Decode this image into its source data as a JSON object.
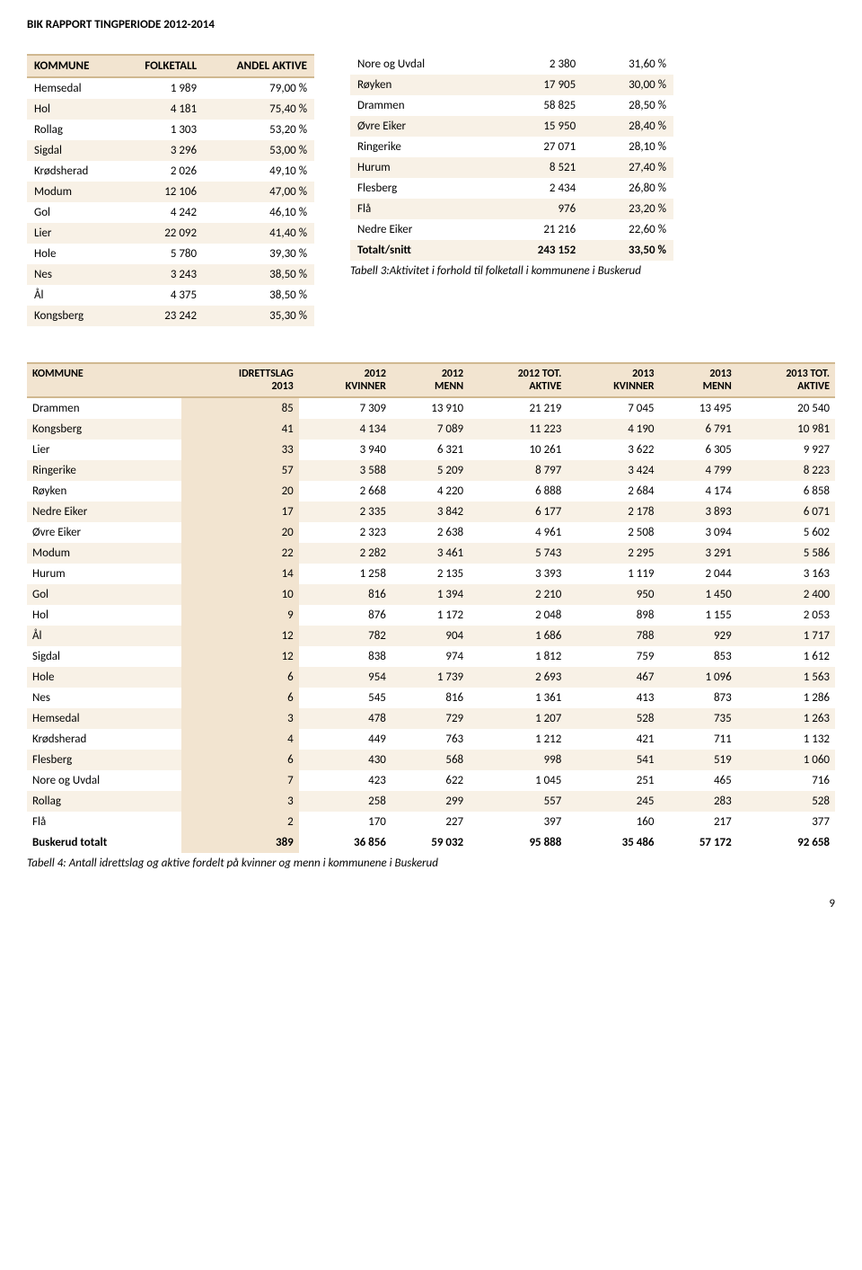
{
  "doc_title": "BIK RAPPORT TINGPERIODE 2012-2014",
  "page_number": "9",
  "table1": {
    "headers": [
      "KOMMUNE",
      "FOLKETALL",
      "ANDEL AKTIVE"
    ],
    "rows": [
      [
        "Hemsedal",
        "1 989",
        "79,00 %"
      ],
      [
        "Hol",
        "4 181",
        "75,40 %"
      ],
      [
        "Rollag",
        "1 303",
        "53,20 %"
      ],
      [
        "Sigdal",
        "3 296",
        "53,00 %"
      ],
      [
        "Krødsherad",
        "2 026",
        "49,10 %"
      ],
      [
        "Modum",
        "12 106",
        "47,00 %"
      ],
      [
        "Gol",
        "4 242",
        "46,10 %"
      ],
      [
        "Lier",
        "22 092",
        "41,40 %"
      ],
      [
        "Hole",
        "5 780",
        "39,30 %"
      ],
      [
        "Nes",
        "3 243",
        "38,50 %"
      ],
      [
        "Ål",
        "4 375",
        "38,50 %"
      ],
      [
        "Kongsberg",
        "23 242",
        "35,30 %"
      ]
    ]
  },
  "table2": {
    "rows": [
      [
        "Nore og Uvdal",
        "2 380",
        "31,60 %"
      ],
      [
        "Røyken",
        "17 905",
        "30,00 %"
      ],
      [
        "Drammen",
        "58 825",
        "28,50 %"
      ],
      [
        "Øvre Eiker",
        "15 950",
        "28,40 %"
      ],
      [
        "Ringerike",
        "27 071",
        "28,10 %"
      ],
      [
        "Hurum",
        "8 521",
        "27,40 %"
      ],
      [
        "Flesberg",
        "2 434",
        "26,80 %"
      ],
      [
        "Flå",
        "976",
        "23,20 %"
      ],
      [
        "Nedre Eiker",
        "21 216",
        "22,60 %"
      ]
    ],
    "total": [
      "Totalt/snitt",
      "243 152",
      "33,50 %"
    ],
    "caption": "Tabell 3:Aktivitet i forhold til folketall i kommunene i Buskerud"
  },
  "table3": {
    "headers": [
      "KOMMUNE",
      "IDRETTSLAG 2013",
      "2012 KVINNER",
      "2012 MENN",
      "2012 TOT. AKTIVE",
      "2013 KVINNER",
      "2013 MENN",
      "2013 TOT. AKTIVE"
    ],
    "header_lines": [
      [
        "KOMMUNE"
      ],
      [
        "IDRETTSLAG",
        "2013"
      ],
      [
        "2012",
        "KVINNER"
      ],
      [
        "2012",
        "MENN"
      ],
      [
        "2012 TOT.",
        "AKTIVE"
      ],
      [
        "2013",
        "KVINNER"
      ],
      [
        "2013",
        "MENN"
      ],
      [
        "2013 TOT.",
        "AKTIVE"
      ]
    ],
    "rows": [
      [
        "Drammen",
        "85",
        "7 309",
        "13 910",
        "21 219",
        "7 045",
        "13 495",
        "20 540"
      ],
      [
        "Kongsberg",
        "41",
        "4 134",
        "7 089",
        "11 223",
        "4 190",
        "6 791",
        "10 981"
      ],
      [
        "Lier",
        "33",
        "3 940",
        "6 321",
        "10 261",
        "3 622",
        "6 305",
        "9 927"
      ],
      [
        "Ringerike",
        "57",
        "3 588",
        "5 209",
        "8 797",
        "3 424",
        "4 799",
        "8 223"
      ],
      [
        "Røyken",
        "20",
        "2 668",
        "4 220",
        "6 888",
        "2 684",
        "4 174",
        "6 858"
      ],
      [
        "Nedre Eiker",
        "17",
        "2 335",
        "3 842",
        "6 177",
        "2 178",
        "3 893",
        "6 071"
      ],
      [
        "Øvre Eiker",
        "20",
        "2 323",
        "2 638",
        "4 961",
        "2 508",
        "3 094",
        "5 602"
      ],
      [
        "Modum",
        "22",
        "2 282",
        "3 461",
        "5 743",
        "2 295",
        "3 291",
        "5 586"
      ],
      [
        "Hurum",
        "14",
        "1 258",
        "2 135",
        "3 393",
        "1 119",
        "2 044",
        "3 163"
      ],
      [
        "Gol",
        "10",
        "816",
        "1 394",
        "2 210",
        "950",
        "1 450",
        "2 400"
      ],
      [
        "Hol",
        "9",
        "876",
        "1 172",
        "2 048",
        "898",
        "1 155",
        "2 053"
      ],
      [
        "Ål",
        "12",
        "782",
        "904",
        "1 686",
        "788",
        "929",
        "1 717"
      ],
      [
        "Sigdal",
        "12",
        "838",
        "974",
        "1 812",
        "759",
        "853",
        "1 612"
      ],
      [
        "Hole",
        "6",
        "954",
        "1 739",
        "2 693",
        "467",
        "1 096",
        "1 563"
      ],
      [
        "Nes",
        "6",
        "545",
        "816",
        "1 361",
        "413",
        "873",
        "1 286"
      ],
      [
        "Hemsedal",
        "3",
        "478",
        "729",
        "1 207",
        "528",
        "735",
        "1 263"
      ],
      [
        "Krødsherad",
        "4",
        "449",
        "763",
        "1 212",
        "421",
        "711",
        "1 132"
      ],
      [
        "Flesberg",
        "6",
        "430",
        "568",
        "998",
        "541",
        "519",
        "1 060"
      ],
      [
        "Nore og Uvdal",
        "7",
        "423",
        "622",
        "1 045",
        "251",
        "465",
        "716"
      ],
      [
        "Rollag",
        "3",
        "258",
        "299",
        "557",
        "245",
        "283",
        "528"
      ],
      [
        "Flå",
        "2",
        "170",
        "227",
        "397",
        "160",
        "217",
        "377"
      ]
    ],
    "total": [
      "Buskerud totalt",
      "389",
      "36 856",
      "59 032",
      "95 888",
      "35 486",
      "57 172",
      "92 658"
    ],
    "caption": "Tabell 4: Antall idrettslag og aktive fordelt på kvinner og menn i kommunene i Buskerud"
  }
}
